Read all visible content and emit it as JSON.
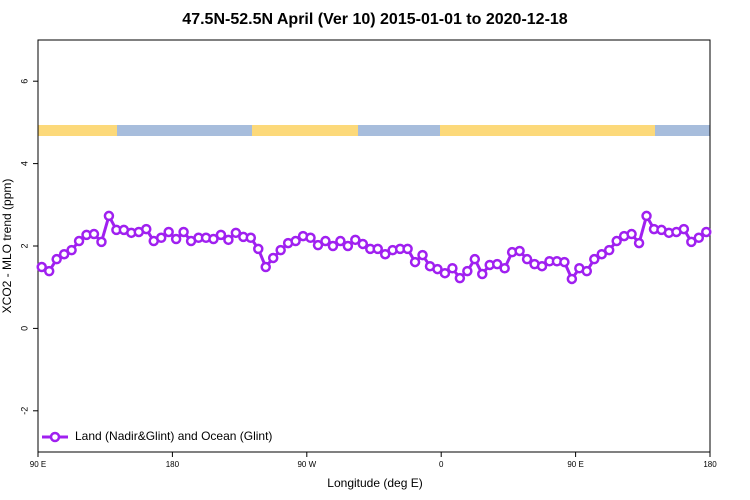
{
  "chart_data": {
    "type": "line",
    "title": "47.5N-52.5N April (Ver 10)   2015-01-01 to 2020-12-18",
    "x_label": "Longitude (deg E)",
    "y_label": "XCO2 - MLO trend (ppm)",
    "xlim": [
      90,
      540
    ],
    "ylim": [
      -3,
      7
    ],
    "xticks": [
      {
        "value": 90,
        "label": "90 E"
      },
      180,
      {
        "value": 270,
        "label": "90 W"
      },
      {
        "value": 360,
        "label": "0"
      },
      {
        "value": 450,
        "label": "90 E"
      },
      {
        "value": 540,
        "label": "180"
      }
    ],
    "yticks": [
      -2,
      0,
      2,
      4,
      6
    ],
    "legend": "bottom-left",
    "x": [
      92.5,
      97.5,
      102.5,
      107.5,
      112.5,
      117.5,
      122.5,
      127.5,
      132.5,
      137.5,
      142.5,
      147.5,
      152.5,
      157.5,
      162.5,
      167.5,
      172.5,
      177.5,
      182.5,
      187.5,
      192.5,
      197.5,
      202.5,
      207.5,
      212.5,
      217.5,
      222.5,
      227.5,
      232.5,
      237.5,
      242.5,
      247.5,
      252.5,
      257.5,
      262.5,
      267.5,
      272.5,
      277.5,
      282.5,
      287.5,
      292.5,
      297.5,
      302.5,
      307.5,
      312.5,
      317.5,
      322.5,
      327.5,
      332.5,
      337.5,
      342.5,
      347.5,
      352.5,
      357.5,
      362.5,
      367.5,
      372.5,
      377.5,
      382.5,
      387.5,
      392.5,
      397.5,
      402.5,
      407.5,
      412.5,
      417.5,
      422.5,
      427.5,
      432.5,
      437.5,
      442.5,
      447.5,
      452.5,
      457.5,
      462.5,
      467.5,
      472.5,
      477.5,
      482.5,
      487.5,
      492.5,
      497.5,
      502.5,
      507.5,
      512.5,
      517.5,
      522.5,
      527.5,
      532.5,
      537.5
    ],
    "series": [
      {
        "name": "Land (Nadir&Glint) and Ocean (Glint)",
        "color": "#a020f0",
        "values": [
          1.49,
          1.39,
          1.68,
          1.8,
          1.9,
          2.12,
          2.27,
          2.29,
          2.1,
          2.73,
          2.39,
          2.39,
          2.32,
          2.34,
          2.41,
          2.12,
          2.2,
          2.34,
          2.17,
          2.34,
          2.12,
          2.2,
          2.2,
          2.17,
          2.27,
          2.15,
          2.32,
          2.22,
          2.2,
          1.93,
          1.49,
          1.71,
          1.9,
          2.07,
          2.12,
          2.24,
          2.2,
          2.02,
          2.12,
          2.0,
          2.12,
          2.0,
          2.15,
          2.05,
          1.93,
          1.93,
          1.8,
          1.9,
          1.93,
          1.93,
          1.61,
          1.78,
          1.51,
          1.44,
          1.34,
          1.46,
          1.22,
          1.39,
          1.68,
          1.32,
          1.54,
          1.56,
          1.46,
          1.85,
          1.88,
          1.68,
          1.56,
          1.51,
          1.63,
          1.63,
          1.61,
          1.2,
          1.46,
          1.39,
          1.68,
          1.8,
          1.9,
          2.12,
          2.24,
          2.29,
          2.07,
          2.73,
          2.41,
          2.39,
          2.32,
          2.34,
          2.41,
          2.1,
          2.2,
          2.34
        ]
      }
    ]
  }
}
